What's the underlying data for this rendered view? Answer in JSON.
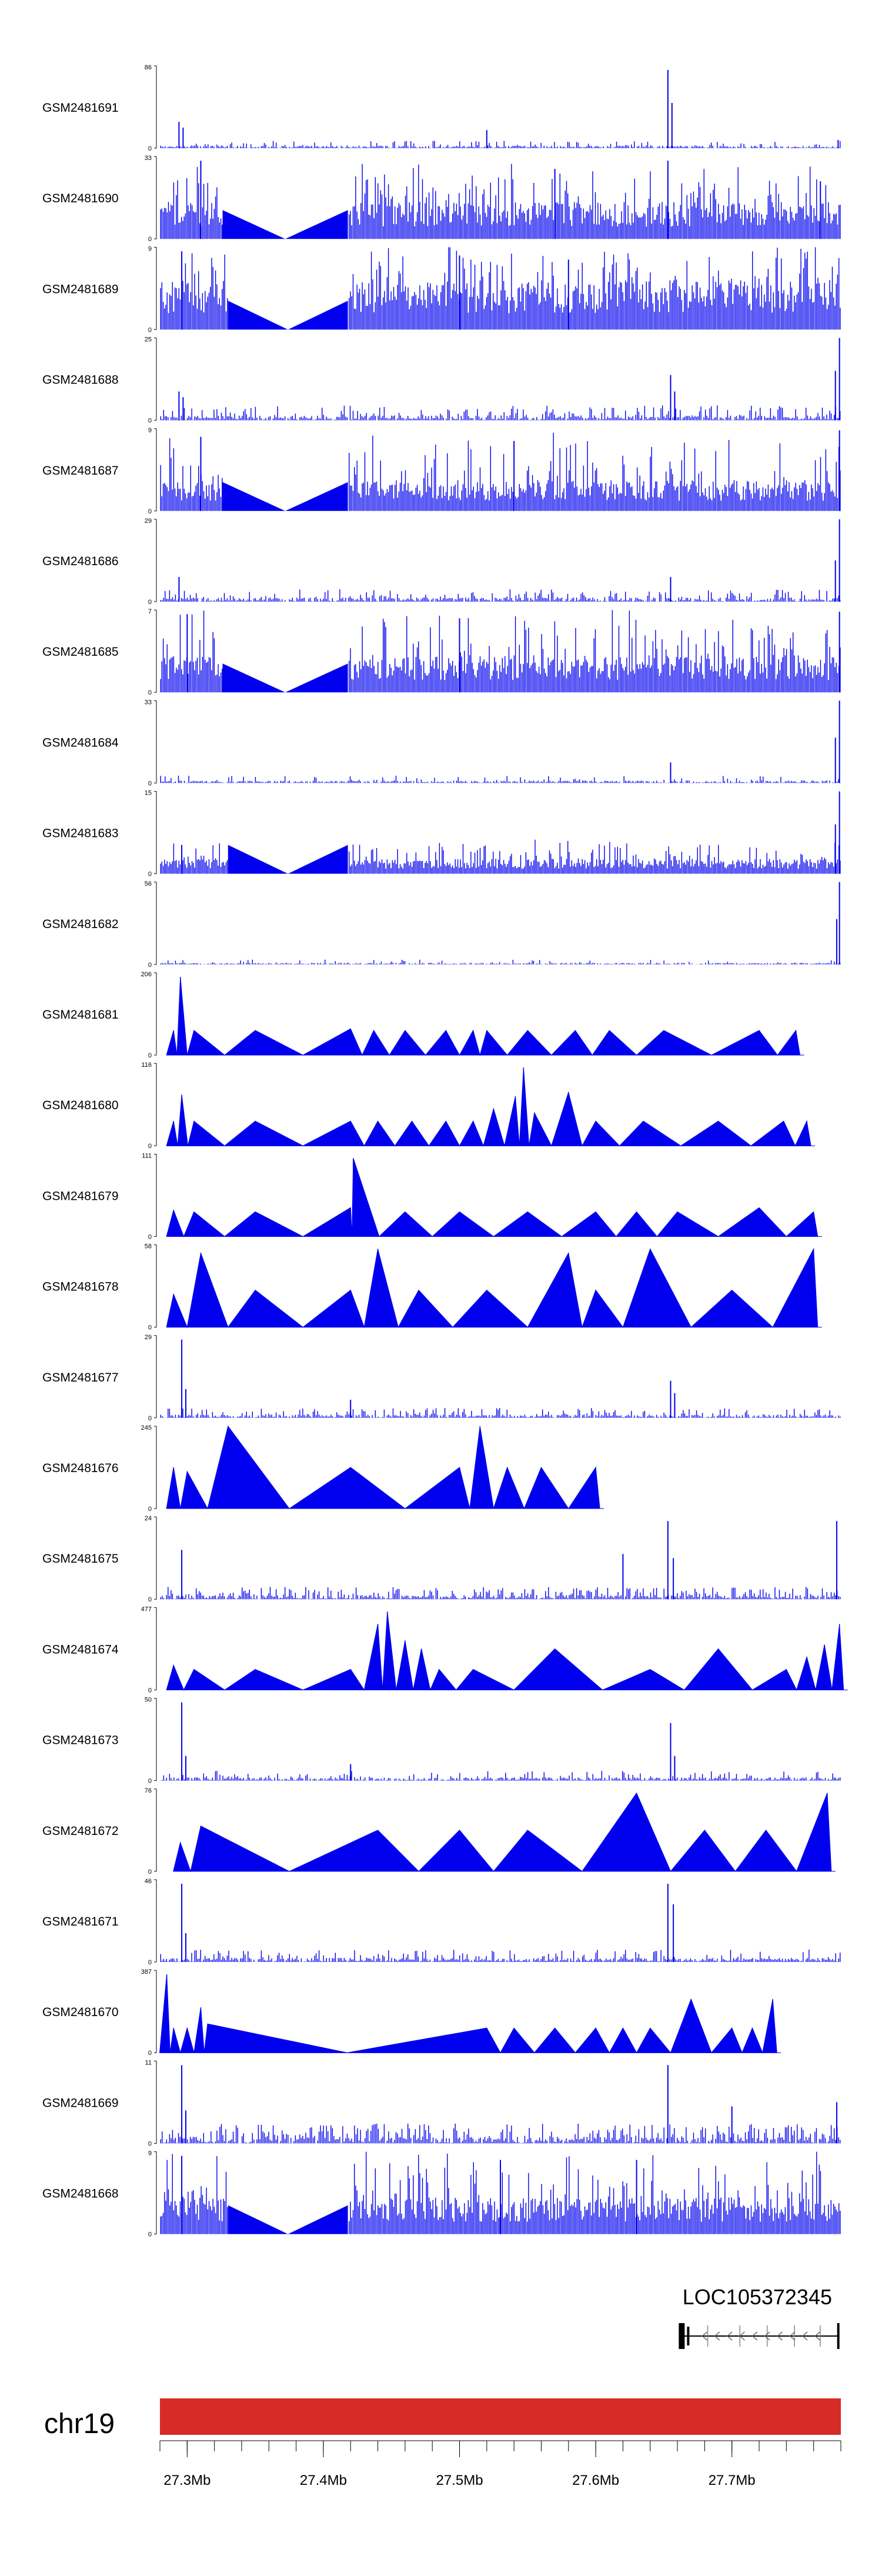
{
  "chart_data": {
    "type": "area",
    "title": "",
    "xlabel": "",
    "ylabel": "",
    "x_unit": "Mb",
    "xlim": [
      27.28,
      27.78
    ],
    "x_ticks": [
      27.3,
      27.4,
      27.5,
      27.6,
      27.7
    ],
    "x_tick_labels": [
      "27.3Mb",
      "27.4Mb",
      "27.5Mb",
      "27.6Mb",
      "27.7Mb"
    ],
    "track_color": "#0000ee",
    "ideogram_color": "#d72b27",
    "tracks": [
      {
        "name": "GSM2481691",
        "ymax": 86,
        "style": "signal",
        "density": 0.25,
        "base": 0.03,
        "peaks": [
          {
            "x": 27.294,
            "h": 0.32
          },
          {
            "x": 27.297,
            "h": 0.25
          },
          {
            "x": 27.52,
            "h": 0.22
          },
          {
            "x": 27.653,
            "h": 0.95
          },
          {
            "x": 27.656,
            "h": 0.55
          },
          {
            "x": 27.778,
            "h": 0.1
          }
        ]
      },
      {
        "name": "GSM2481690",
        "ymax": 33,
        "style": "dense",
        "level": 0.3,
        "spread": 0.5,
        "gap": [
          27.326,
          27.418
        ],
        "peaks": [
          {
            "x": 27.31,
            "h": 0.95
          },
          {
            "x": 27.57,
            "h": 0.85
          },
          {
            "x": 27.653,
            "h": 0.95
          },
          {
            "x": 27.765,
            "h": 0.7
          }
        ]
      },
      {
        "name": "GSM2481689",
        "ymax": 9,
        "style": "dense",
        "level": 0.4,
        "spread": 0.55,
        "gap": [
          27.33,
          27.418
        ],
        "peaks": [
          {
            "x": 27.296,
            "h": 0.95
          },
          {
            "x": 27.5,
            "h": 0.9
          },
          {
            "x": 27.58,
            "h": 0.85
          }
        ]
      },
      {
        "name": "GSM2481688",
        "ymax": 25,
        "style": "signal",
        "density": 0.35,
        "base": 0.06,
        "peaks": [
          {
            "x": 27.294,
            "h": 0.35
          },
          {
            "x": 27.297,
            "h": 0.28
          },
          {
            "x": 27.655,
            "h": 0.55
          },
          {
            "x": 27.658,
            "h": 0.35
          },
          {
            "x": 27.776,
            "h": 0.6
          },
          {
            "x": 27.779,
            "h": 1.0
          }
        ]
      },
      {
        "name": "GSM2481687",
        "ymax": 9,
        "style": "dense",
        "level": 0.25,
        "spread": 0.6,
        "gap": [
          27.326,
          27.418
        ],
        "peaks": [
          {
            "x": 27.31,
            "h": 0.9
          },
          {
            "x": 27.54,
            "h": 0.85
          },
          {
            "x": 27.779,
            "h": 0.98
          }
        ]
      },
      {
        "name": "GSM2481686",
        "ymax": 29,
        "style": "signal",
        "density": 0.3,
        "base": 0.05,
        "peaks": [
          {
            "x": 27.294,
            "h": 0.3
          },
          {
            "x": 27.655,
            "h": 0.3
          },
          {
            "x": 27.776,
            "h": 0.5
          },
          {
            "x": 27.779,
            "h": 1.0
          }
        ]
      },
      {
        "name": "GSM2481685",
        "ymax": 7,
        "style": "dense",
        "level": 0.3,
        "spread": 0.6,
        "gap": [
          27.326,
          27.418
        ],
        "peaks": [
          {
            "x": 27.3,
            "h": 0.95
          },
          {
            "x": 27.5,
            "h": 0.9
          },
          {
            "x": 27.779,
            "h": 0.98
          }
        ]
      },
      {
        "name": "GSM2481684",
        "ymax": 33,
        "style": "signal",
        "density": 0.2,
        "base": 0.03,
        "peaks": [
          {
            "x": 27.655,
            "h": 0.25
          },
          {
            "x": 27.776,
            "h": 0.55
          },
          {
            "x": 27.779,
            "h": 1.0
          }
        ]
      },
      {
        "name": "GSM2481683",
        "ymax": 15,
        "style": "dense",
        "level": 0.12,
        "spread": 0.25,
        "gap": [
          27.33,
          27.418
        ],
        "peaks": [
          {
            "x": 27.296,
            "h": 0.35
          },
          {
            "x": 27.776,
            "h": 0.6
          },
          {
            "x": 27.779,
            "h": 1.0
          }
        ]
      },
      {
        "name": "GSM2481682",
        "ymax": 56,
        "style": "signal",
        "density": 0.12,
        "base": 0.02,
        "peaks": [
          {
            "x": 27.777,
            "h": 0.55
          },
          {
            "x": 27.779,
            "h": 1.0
          }
        ]
      },
      {
        "name": "GSM2481681",
        "ymax": 206,
        "style": "tents",
        "level": 0.35,
        "gap": [
          27.326,
          27.42
        ],
        "tents": [
          {
            "x": 27.29,
            "h": 0.3
          },
          {
            "x": 27.295,
            "h": 0.95
          },
          {
            "x": 27.305,
            "h": 0.3
          },
          {
            "x": 27.35,
            "h": 0.3
          },
          {
            "x": 27.42,
            "h": 0.32
          },
          {
            "x": 27.437,
            "h": 0.3
          },
          {
            "x": 27.46,
            "h": 0.3
          },
          {
            "x": 27.49,
            "h": 0.3
          },
          {
            "x": 27.51,
            "h": 0.3
          },
          {
            "x": 27.52,
            "h": 0.3
          },
          {
            "x": 27.55,
            "h": 0.3
          },
          {
            "x": 27.585,
            "h": 0.3
          },
          {
            "x": 27.61,
            "h": 0.3
          },
          {
            "x": 27.65,
            "h": 0.3
          },
          {
            "x": 27.72,
            "h": 0.3
          },
          {
            "x": 27.747,
            "h": 0.3
          }
        ]
      },
      {
        "name": "GSM2481680",
        "ymax": 116,
        "style": "tents",
        "level": 0.3,
        "gap": [
          27.326,
          27.42
        ],
        "tents": [
          {
            "x": 27.29,
            "h": 0.3
          },
          {
            "x": 27.296,
            "h": 0.62
          },
          {
            "x": 27.305,
            "h": 0.3
          },
          {
            "x": 27.35,
            "h": 0.3
          },
          {
            "x": 27.42,
            "h": 0.3
          },
          {
            "x": 27.44,
            "h": 0.3
          },
          {
            "x": 27.465,
            "h": 0.3
          },
          {
            "x": 27.49,
            "h": 0.3
          },
          {
            "x": 27.51,
            "h": 0.3
          },
          {
            "x": 27.525,
            "h": 0.45
          },
          {
            "x": 27.541,
            "h": 0.6
          },
          {
            "x": 27.547,
            "h": 0.95
          },
          {
            "x": 27.555,
            "h": 0.4
          },
          {
            "x": 27.58,
            "h": 0.65
          },
          {
            "x": 27.6,
            "h": 0.3
          },
          {
            "x": 27.635,
            "h": 0.3
          },
          {
            "x": 27.69,
            "h": 0.3
          },
          {
            "x": 27.738,
            "h": 0.3
          },
          {
            "x": 27.755,
            "h": 0.3
          }
        ]
      },
      {
        "name": "GSM2481679",
        "ymax": 111,
        "style": "tents",
        "level": 0.35,
        "gap": [
          27.326,
          27.42
        ],
        "tents": [
          {
            "x": 27.29,
            "h": 0.32
          },
          {
            "x": 27.305,
            "h": 0.3
          },
          {
            "x": 27.35,
            "h": 0.3
          },
          {
            "x": 27.42,
            "h": 0.35
          },
          {
            "x": 27.422,
            "h": 0.95
          },
          {
            "x": 27.46,
            "h": 0.3
          },
          {
            "x": 27.5,
            "h": 0.3
          },
          {
            "x": 27.55,
            "h": 0.3
          },
          {
            "x": 27.6,
            "h": 0.3
          },
          {
            "x": 27.63,
            "h": 0.3
          },
          {
            "x": 27.66,
            "h": 0.3
          },
          {
            "x": 27.72,
            "h": 0.35
          },
          {
            "x": 27.76,
            "h": 0.3
          }
        ]
      },
      {
        "name": "GSM2481678",
        "ymax": 58,
        "style": "tents",
        "level": 0.45,
        "gap": [
          27.33,
          27.42
        ],
        "tents": [
          {
            "x": 27.29,
            "h": 0.4
          },
          {
            "x": 27.31,
            "h": 0.9
          },
          {
            "x": 27.35,
            "h": 0.45
          },
          {
            "x": 27.42,
            "h": 0.45
          },
          {
            "x": 27.44,
            "h": 0.95
          },
          {
            "x": 27.47,
            "h": 0.45
          },
          {
            "x": 27.52,
            "h": 0.45
          },
          {
            "x": 27.58,
            "h": 0.9
          },
          {
            "x": 27.6,
            "h": 0.45
          },
          {
            "x": 27.64,
            "h": 0.95
          },
          {
            "x": 27.7,
            "h": 0.45
          },
          {
            "x": 27.76,
            "h": 0.95
          }
        ]
      },
      {
        "name": "GSM2481677",
        "ymax": 29,
        "style": "signal",
        "density": 0.3,
        "base": 0.04,
        "peaks": [
          {
            "x": 27.296,
            "h": 0.95
          },
          {
            "x": 27.299,
            "h": 0.35
          },
          {
            "x": 27.42,
            "h": 0.22
          },
          {
            "x": 27.655,
            "h": 0.45
          },
          {
            "x": 27.658,
            "h": 0.3
          }
        ]
      },
      {
        "name": "GSM2481676",
        "ymax": 245,
        "style": "tents",
        "level": 0.5,
        "gap": [
          27.335,
          27.36
        ],
        "tents": [
          {
            "x": 27.29,
            "h": 0.5
          },
          {
            "x": 27.3,
            "h": 0.45
          },
          {
            "x": 27.33,
            "h": 1.0
          },
          {
            "x": 27.42,
            "h": 0.5
          },
          {
            "x": 27.5,
            "h": 0.5
          },
          {
            "x": 27.515,
            "h": 1.0
          },
          {
            "x": 27.535,
            "h": 0.5
          },
          {
            "x": 27.56,
            "h": 0.5
          },
          {
            "x": 27.6,
            "h": 0.5
          }
        ]
      },
      {
        "name": "GSM2481675",
        "ymax": 24,
        "style": "signal",
        "density": 0.45,
        "base": 0.05,
        "peaks": [
          {
            "x": 27.296,
            "h": 0.6
          },
          {
            "x": 27.653,
            "h": 0.95
          },
          {
            "x": 27.657,
            "h": 0.5
          },
          {
            "x": 27.777,
            "h": 0.95
          },
          {
            "x": 27.62,
            "h": 0.55
          }
        ]
      },
      {
        "name": "GSM2481674",
        "ymax": 477,
        "style": "tents",
        "level": 0.4,
        "gap": [
          27.33,
          27.42
        ],
        "tents": [
          {
            "x": 27.29,
            "h": 0.3
          },
          {
            "x": 27.305,
            "h": 0.25
          },
          {
            "x": 27.35,
            "h": 0.25
          },
          {
            "x": 27.42,
            "h": 0.25
          },
          {
            "x": 27.44,
            "h": 0.8
          },
          {
            "x": 27.447,
            "h": 0.95
          },
          {
            "x": 27.46,
            "h": 0.6
          },
          {
            "x": 27.472,
            "h": 0.5
          },
          {
            "x": 27.485,
            "h": 0.25
          },
          {
            "x": 27.51,
            "h": 0.25
          },
          {
            "x": 27.57,
            "h": 0.5
          },
          {
            "x": 27.64,
            "h": 0.25
          },
          {
            "x": 27.69,
            "h": 0.5
          },
          {
            "x": 27.74,
            "h": 0.25
          },
          {
            "x": 27.755,
            "h": 0.4
          },
          {
            "x": 27.768,
            "h": 0.55
          },
          {
            "x": 27.779,
            "h": 0.8
          }
        ]
      },
      {
        "name": "GSM2481673",
        "ymax": 50,
        "style": "signal",
        "density": 0.3,
        "base": 0.04,
        "peaks": [
          {
            "x": 27.296,
            "h": 0.95
          },
          {
            "x": 27.299,
            "h": 0.3
          },
          {
            "x": 27.42,
            "h": 0.2
          },
          {
            "x": 27.655,
            "h": 0.7
          },
          {
            "x": 27.658,
            "h": 0.3
          }
        ]
      },
      {
        "name": "GSM2481672",
        "ymax": 76,
        "style": "tents",
        "level": 0.5,
        "gap": [
          27.33,
          27.42
        ],
        "tents": [
          {
            "x": 27.295,
            "h": 0.35
          },
          {
            "x": 27.31,
            "h": 0.55
          },
          {
            "x": 27.44,
            "h": 0.5
          },
          {
            "x": 27.5,
            "h": 0.5
          },
          {
            "x": 27.55,
            "h": 0.5
          },
          {
            "x": 27.63,
            "h": 0.95
          },
          {
            "x": 27.68,
            "h": 0.5
          },
          {
            "x": 27.725,
            "h": 0.5
          },
          {
            "x": 27.77,
            "h": 0.95
          }
        ]
      },
      {
        "name": "GSM2481671",
        "ymax": 46,
        "style": "signal",
        "density": 0.35,
        "base": 0.05,
        "peaks": [
          {
            "x": 27.296,
            "h": 0.95
          },
          {
            "x": 27.299,
            "h": 0.35
          },
          {
            "x": 27.653,
            "h": 0.95
          },
          {
            "x": 27.657,
            "h": 0.7
          }
        ]
      },
      {
        "name": "GSM2481670",
        "ymax": 387,
        "style": "tents",
        "level": 0.35,
        "gap": [
          27.335,
          27.41
        ],
        "tents": [
          {
            "x": 27.285,
            "h": 0.95
          },
          {
            "x": 27.29,
            "h": 0.3
          },
          {
            "x": 27.3,
            "h": 0.3
          },
          {
            "x": 27.31,
            "h": 0.55
          },
          {
            "x": 27.315,
            "h": 0.35
          },
          {
            "x": 27.52,
            "h": 0.3
          },
          {
            "x": 27.54,
            "h": 0.3
          },
          {
            "x": 27.57,
            "h": 0.3
          },
          {
            "x": 27.6,
            "h": 0.3
          },
          {
            "x": 27.62,
            "h": 0.3
          },
          {
            "x": 27.64,
            "h": 0.3
          },
          {
            "x": 27.67,
            "h": 0.65
          },
          {
            "x": 27.7,
            "h": 0.3
          },
          {
            "x": 27.715,
            "h": 0.3
          },
          {
            "x": 27.73,
            "h": 0.65
          }
        ]
      },
      {
        "name": "GSM2481669",
        "ymax": 11,
        "style": "signal",
        "density": 0.5,
        "base": 0.08,
        "peaks": [
          {
            "x": 27.296,
            "h": 0.95
          },
          {
            "x": 27.299,
            "h": 0.4
          },
          {
            "x": 27.653,
            "h": 0.95
          },
          {
            "x": 27.7,
            "h": 0.45
          },
          {
            "x": 27.777,
            "h": 0.5
          }
        ]
      },
      {
        "name": "GSM2481668",
        "ymax": 9,
        "style": "dense",
        "level": 0.3,
        "spread": 0.6,
        "gap": [
          27.33,
          27.418
        ],
        "peaks": [
          {
            "x": 27.296,
            "h": 0.95
          },
          {
            "x": 27.53,
            "h": 0.9
          },
          {
            "x": 27.63,
            "h": 0.9
          }
        ]
      }
    ],
    "gene": {
      "name": "LOC105372345",
      "start": 27.661,
      "end": 27.779,
      "strand": "-"
    },
    "ideogram": {
      "chrom": "chr19"
    }
  }
}
